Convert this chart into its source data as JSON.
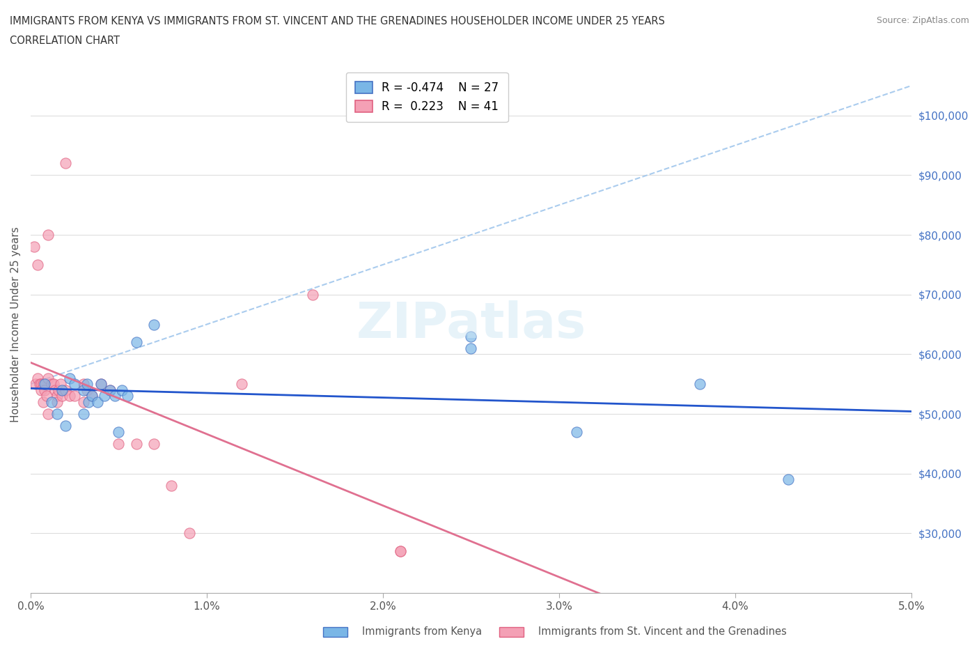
{
  "title_line1": "IMMIGRANTS FROM KENYA VS IMMIGRANTS FROM ST. VINCENT AND THE GRENADINES HOUSEHOLDER INCOME UNDER 25 YEARS",
  "title_line2": "CORRELATION CHART",
  "source_text": "Source: ZipAtlas.com",
  "xlabel": "",
  "ylabel": "Householder Income Under 25 years",
  "xlim": [
    0.0,
    0.05
  ],
  "ylim": [
    25000,
    105000
  ],
  "xtick_labels": [
    "0.0%",
    "1.0%",
    "2.0%",
    "3.0%",
    "4.0%",
    "5.0%"
  ],
  "xtick_vals": [
    0.0,
    0.01,
    0.02,
    0.03,
    0.04,
    0.05
  ],
  "ytick_vals": [
    30000,
    40000,
    50000,
    60000,
    70000,
    80000,
    90000,
    100000
  ],
  "ytick_labels": [
    "$30,000",
    "$40,000",
    "$50,000",
    "$60,000",
    "$70,000",
    "$80,000",
    "$90,000",
    "$100,000"
  ],
  "kenya_color": "#7ab6e6",
  "stvg_color": "#f4a0b5",
  "kenya_edge_color": "#4472c4",
  "stvg_edge_color": "#e06080",
  "kenya_line_color": "#2255cc",
  "stvg_line_color": "#e07090",
  "trend_line_color": "#aaccee",
  "legend_r_kenya": "R = -0.474",
  "legend_n_kenya": "N = 27",
  "legend_r_stvg": "R =  0.223",
  "legend_n_stvg": "N = 41",
  "watermark": "ZIPatlas",
  "kenya_x": [
    0.0008,
    0.0012,
    0.0015,
    0.0018,
    0.002,
    0.0022,
    0.0025,
    0.003,
    0.003,
    0.0032,
    0.0033,
    0.0035,
    0.0038,
    0.004,
    0.0042,
    0.0045,
    0.0048,
    0.005,
    0.0052,
    0.0055,
    0.006,
    0.007,
    0.025,
    0.025,
    0.031,
    0.038,
    0.043
  ],
  "kenya_y": [
    55000,
    52000,
    50000,
    54000,
    48000,
    56000,
    55000,
    54000,
    50000,
    55000,
    52000,
    53000,
    52000,
    55000,
    53000,
    54000,
    53000,
    47000,
    54000,
    53000,
    62000,
    65000,
    63000,
    61000,
    47000,
    55000,
    39000
  ],
  "stvg_x": [
    0.0002,
    0.0003,
    0.0004,
    0.0004,
    0.0005,
    0.0006,
    0.0006,
    0.0007,
    0.0007,
    0.0008,
    0.0009,
    0.001,
    0.001,
    0.001,
    0.0012,
    0.0013,
    0.0014,
    0.0015,
    0.0015,
    0.0016,
    0.0017,
    0.0018,
    0.002,
    0.002,
    0.0022,
    0.0025,
    0.003,
    0.003,
    0.0032,
    0.0035,
    0.004,
    0.0045,
    0.005,
    0.006,
    0.007,
    0.008,
    0.009,
    0.012,
    0.016,
    0.021,
    0.021
  ],
  "stvg_y": [
    78000,
    55000,
    75000,
    56000,
    55000,
    55000,
    54000,
    55000,
    52000,
    54000,
    53000,
    80000,
    56000,
    50000,
    55000,
    55000,
    54000,
    53000,
    52000,
    54000,
    55000,
    53000,
    92000,
    54000,
    53000,
    53000,
    55000,
    52000,
    54000,
    53000,
    55000,
    54000,
    45000,
    45000,
    45000,
    38000,
    30000,
    55000,
    70000,
    27000,
    27000
  ],
  "marker_size": 120,
  "marker_alpha": 0.7,
  "background_color": "#ffffff",
  "grid_color": "#dddddd"
}
